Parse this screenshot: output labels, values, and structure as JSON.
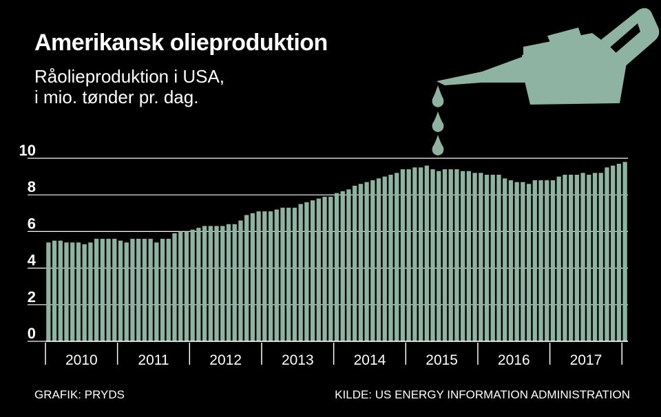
{
  "title": "Amerikansk olieproduktion",
  "subtitle_lines": [
    "Råolieproduktion i USA,",
    "i mio. tønder pr. dag."
  ],
  "footer": {
    "credit": "GRAFIK: PRYDS",
    "source": "KILDE: US ENERGY INFORMATION ADMINISTRATION"
  },
  "colors": {
    "background": "#000000",
    "bar": "#8fb3a3",
    "text": "#ffffff",
    "gridline": "#ffffff"
  },
  "illustration": "oil-can-icon",
  "chart_data": {
    "type": "bar",
    "title": "Amerikansk olieproduktion",
    "ylabel": "",
    "xlabel": "",
    "ylim": [
      0,
      10
    ],
    "yticks": [
      0,
      2,
      4,
      6,
      8,
      10
    ],
    "grid": "horizontal",
    "year_labels": [
      "2010",
      "2011",
      "2012",
      "2013",
      "2014",
      "2015",
      "2016",
      "2017"
    ],
    "months_per_year": 12,
    "series": [
      {
        "values": [
          5.4,
          5.5,
          5.5,
          5.4,
          5.4,
          5.4,
          5.3,
          5.4,
          5.6,
          5.6,
          5.6,
          5.6,
          5.5,
          5.4,
          5.6,
          5.6,
          5.6,
          5.6,
          5.4,
          5.6,
          5.6,
          5.9,
          6.0,
          6.0,
          6.1,
          6.2,
          6.3,
          6.3,
          6.3,
          6.3,
          6.4,
          6.4,
          6.6,
          6.9,
          7.0,
          7.1,
          7.1,
          7.1,
          7.2,
          7.3,
          7.3,
          7.3,
          7.5,
          7.6,
          7.7,
          7.8,
          7.9,
          7.9,
          8.1,
          8.2,
          8.3,
          8.5,
          8.6,
          8.7,
          8.8,
          8.9,
          9.0,
          9.1,
          9.2,
          9.4,
          9.4,
          9.5,
          9.5,
          9.6,
          9.4,
          9.3,
          9.4,
          9.4,
          9.4,
          9.3,
          9.3,
          9.2,
          9.2,
          9.1,
          9.1,
          9.1,
          8.9,
          8.8,
          8.7,
          8.7,
          8.6,
          8.8,
          8.8,
          8.8,
          8.8,
          9.0,
          9.1,
          9.1,
          9.1,
          9.2,
          9.1,
          9.2,
          9.2,
          9.5,
          9.6,
          9.7,
          9.8
        ]
      }
    ]
  }
}
